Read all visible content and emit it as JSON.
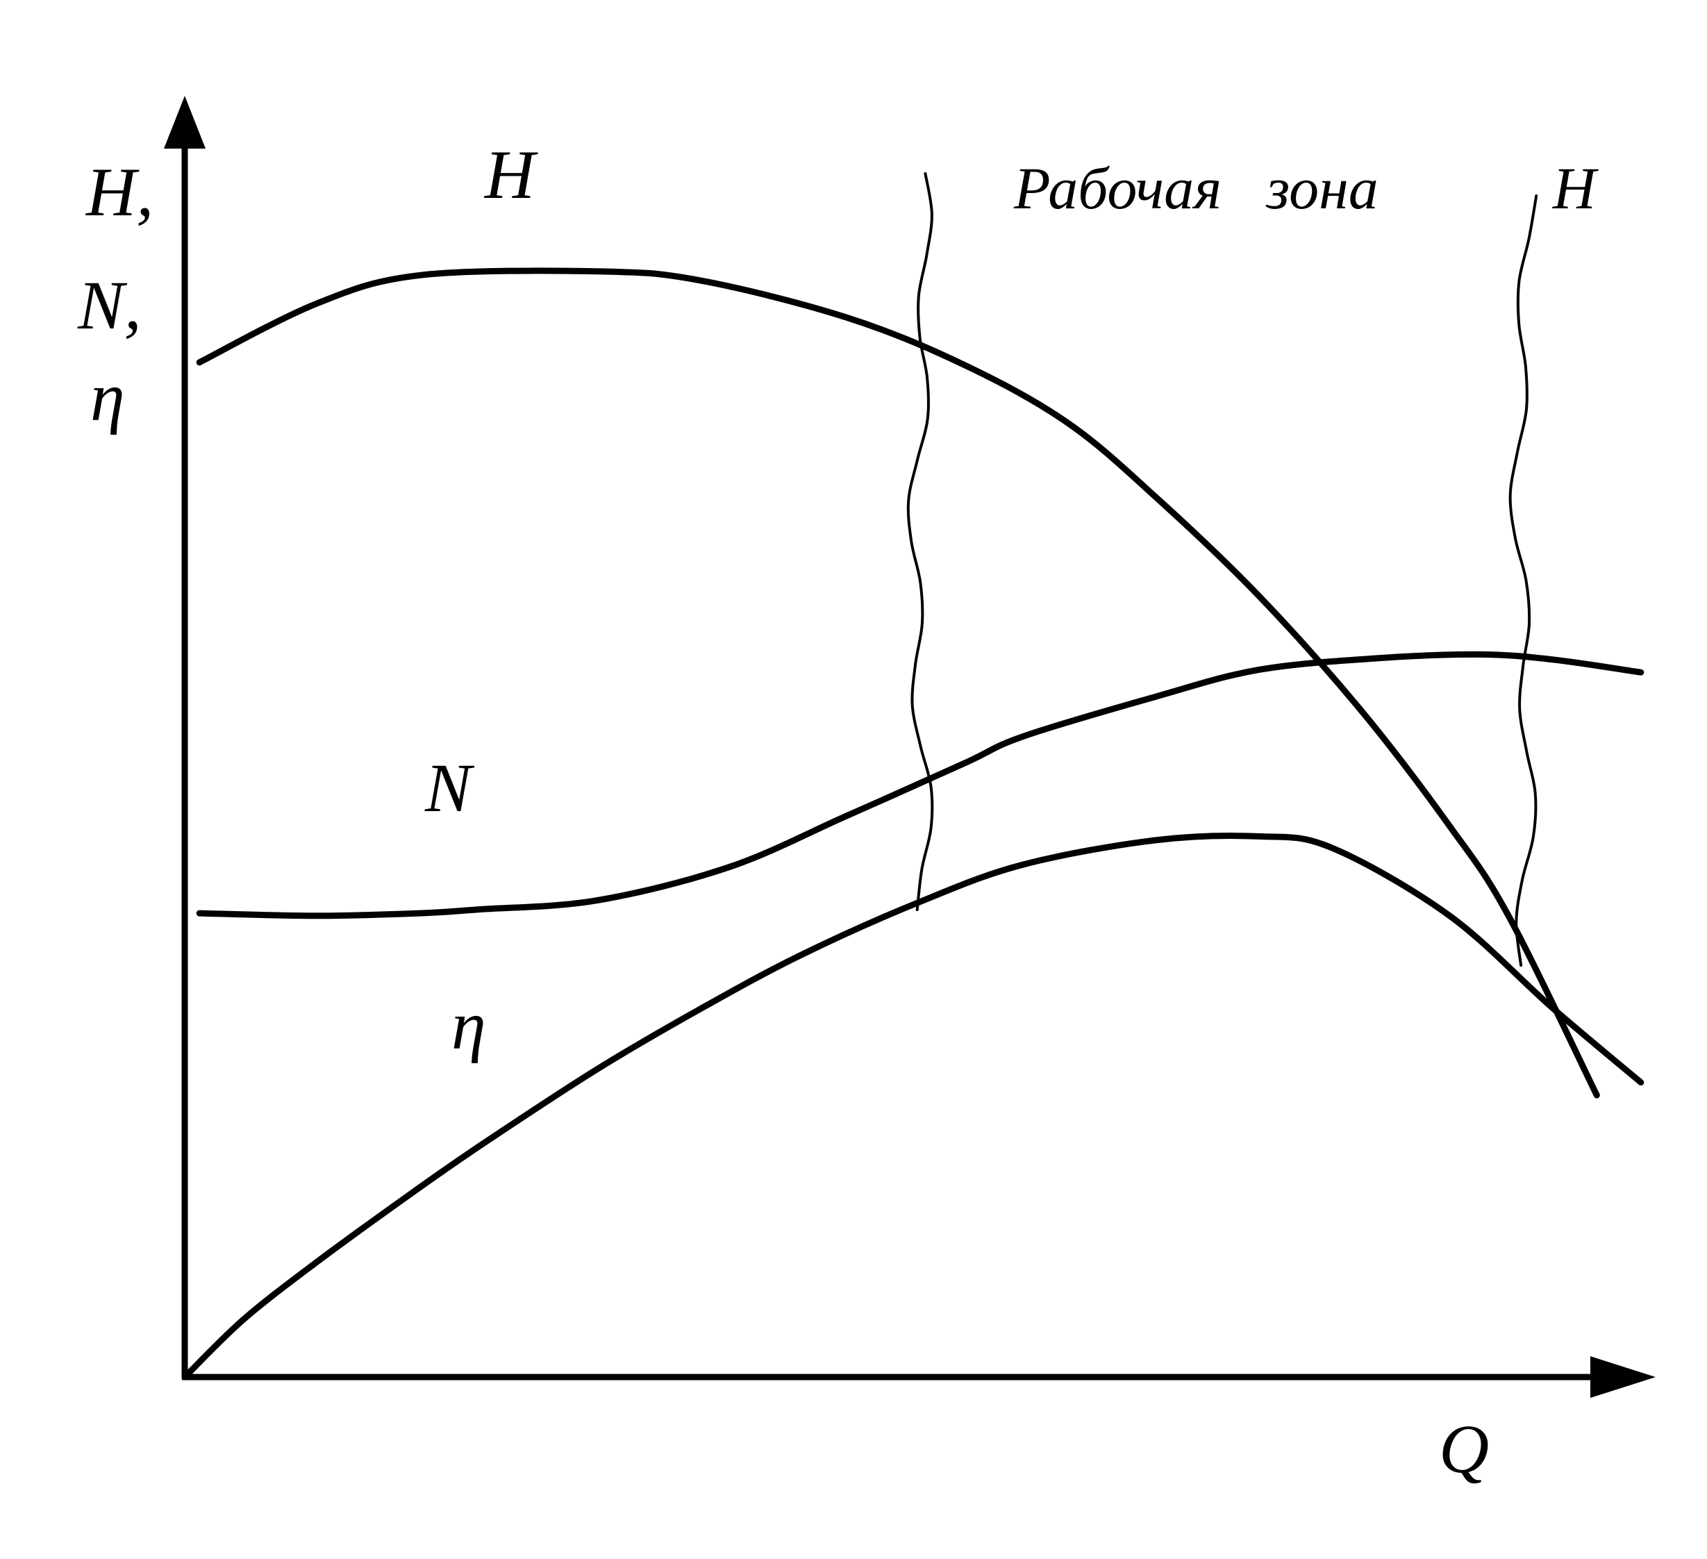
{
  "chart_data": {
    "type": "line",
    "title": "",
    "xlabel": "Q",
    "ylabel_lines": [
      "H,",
      "N,",
      "η"
    ],
    "xlim": [
      0,
      10
    ],
    "ylim": [
      0,
      10
    ],
    "series": [
      {
        "name": "H",
        "x": [
          0.1,
          0.9,
          1.6,
          2.8,
          3.5,
          4.5,
          5.3,
          6.0,
          6.6,
          7.3,
          8.0,
          8.6,
          9.0,
          9.6
        ],
        "y": [
          7.92,
          8.38,
          8.6,
          8.63,
          8.56,
          8.27,
          7.9,
          7.45,
          6.87,
          6.1,
          5.2,
          4.3,
          3.6,
          2.2
        ]
      },
      {
        "name": "N",
        "x": [
          0.1,
          0.9,
          1.6,
          2.0,
          2.8,
          3.7,
          4.5,
          5.3,
          5.7,
          6.6,
          7.3,
          8.1,
          8.8,
          9.3,
          9.9
        ],
        "y": [
          3.62,
          3.6,
          3.62,
          3.65,
          3.72,
          3.98,
          4.38,
          4.79,
          5.0,
          5.31,
          5.52,
          5.61,
          5.64,
          5.6,
          5.5
        ]
      },
      {
        "name": "η",
        "x": [
          0.0,
          0.4,
          0.9,
          1.5,
          2.0,
          2.8,
          3.5,
          4.2,
          5.0,
          5.7,
          6.6,
          7.3,
          7.8,
          8.6,
          9.3,
          9.9
        ],
        "y": [
          0.0,
          0.45,
          0.9,
          1.4,
          1.8,
          2.4,
          2.87,
          3.3,
          3.71,
          4.0,
          4.19,
          4.22,
          4.13,
          3.6,
          2.88,
          2.3
        ]
      }
    ],
    "series_label_text": {
      "H": "H",
      "N": "N",
      "eta": "η"
    },
    "annotations": {
      "zone_text": "Рабочая   зона",
      "zone_end_label": "H"
    },
    "working_zone": {
      "x_start": 5.0,
      "x_end": 9.1
    },
    "grid": false,
    "legend": "none"
  }
}
